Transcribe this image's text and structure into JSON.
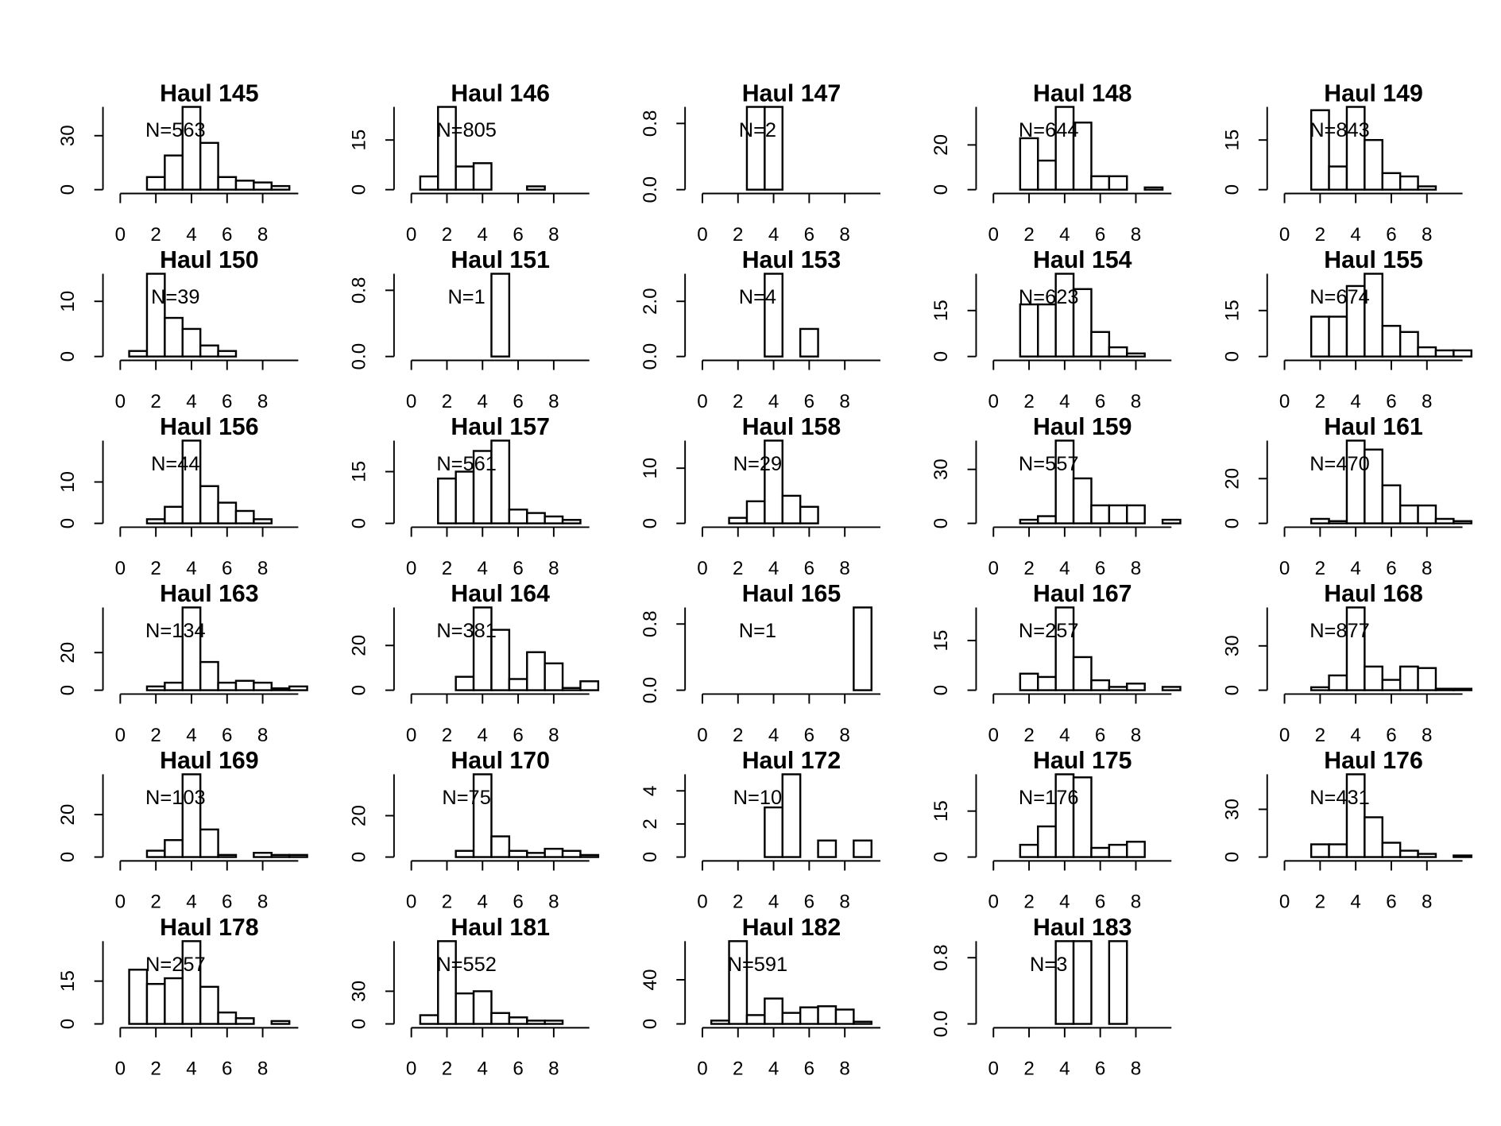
{
  "chart_data": [
    {
      "type": "histogram",
      "title": "Haul 145",
      "annotation": "N=563",
      "bins": [
        0.5,
        1.5,
        2.5,
        3.5,
        4.5,
        5.5,
        6.5,
        7.5,
        8.5,
        9.5,
        10.5
      ],
      "counts": [
        0,
        7,
        19,
        46,
        26,
        7,
        5,
        4,
        2,
        0
      ],
      "xlim": [
        0,
        10
      ],
      "xticks": [
        0,
        2,
        4,
        6,
        8
      ],
      "ylim": [
        0,
        46
      ],
      "yticks": [
        0,
        30
      ]
    },
    {
      "type": "histogram",
      "title": "Haul 146",
      "annotation": "N=805",
      "bins": [
        0.5,
        1.5,
        2.5,
        3.5,
        4.5,
        5.5,
        6.5,
        7.5,
        8.5,
        9.5,
        10.5
      ],
      "counts": [
        4,
        25,
        7,
        8,
        0,
        0,
        1,
        0,
        0,
        0
      ],
      "xlim": [
        0,
        10
      ],
      "xticks": [
        0,
        2,
        4,
        6,
        8
      ],
      "ylim": [
        0,
        25
      ],
      "yticks": [
        0,
        15
      ]
    },
    {
      "type": "histogram",
      "title": "Haul 147",
      "annotation": "N=2",
      "bins": [
        0.5,
        1.5,
        2.5,
        3.5,
        4.5,
        5.5,
        6.5,
        7.5,
        8.5,
        9.5,
        10.5
      ],
      "counts": [
        0,
        0,
        1,
        1,
        0,
        0,
        0,
        0,
        0,
        0
      ],
      "xlim": [
        0,
        10
      ],
      "xticks": [
        0,
        2,
        4,
        6,
        8
      ],
      "ylim": [
        0,
        1
      ],
      "yticks": [
        {
          "value": 0,
          "label": "0.0"
        },
        0.8
      ]
    },
    {
      "type": "histogram",
      "title": "Haul 148",
      "annotation": "N=644",
      "bins": [
        0.5,
        1.5,
        2.5,
        3.5,
        4.5,
        5.5,
        6.5,
        7.5,
        8.5,
        9.5,
        10.5
      ],
      "counts": [
        0,
        23,
        13,
        37,
        30,
        6,
        6,
        0,
        1,
        0
      ],
      "xlim": [
        0,
        10
      ],
      "xticks": [
        0,
        2,
        4,
        6,
        8
      ],
      "ylim": [
        0,
        37
      ],
      "yticks": [
        0,
        20
      ]
    },
    {
      "type": "histogram",
      "title": "Haul 149",
      "annotation": "N=843",
      "bins": [
        0.5,
        1.5,
        2.5,
        3.5,
        4.5,
        5.5,
        6.5,
        7.5,
        8.5,
        9.5,
        10.5
      ],
      "counts": [
        0,
        24,
        7,
        25,
        15,
        5,
        4,
        1,
        0,
        0
      ],
      "xlim": [
        0,
        10
      ],
      "xticks": [
        0,
        2,
        4,
        6,
        8
      ],
      "ylim": [
        0,
        25
      ],
      "yticks": [
        0,
        15
      ]
    },
    {
      "type": "histogram",
      "title": "Haul 150",
      "annotation": "N=39",
      "bins": [
        0.5,
        1.5,
        2.5,
        3.5,
        4.5,
        5.5,
        6.5,
        7.5,
        8.5,
        9.5,
        10.5
      ],
      "counts": [
        1,
        15,
        7,
        5,
        2,
        1,
        0,
        0,
        0,
        0
      ],
      "xlim": [
        0,
        10
      ],
      "xticks": [
        0,
        2,
        4,
        6,
        8
      ],
      "ylim": [
        0,
        15
      ],
      "yticks": [
        0,
        10
      ]
    },
    {
      "type": "histogram",
      "title": "Haul 151",
      "annotation": "N=1",
      "bins": [
        0.5,
        1.5,
        2.5,
        3.5,
        4.5,
        5.5,
        6.5,
        7.5,
        8.5,
        9.5,
        10.5
      ],
      "counts": [
        0,
        0,
        0,
        0,
        1,
        0,
        0,
        0,
        0,
        0
      ],
      "xlim": [
        0,
        10
      ],
      "xticks": [
        0,
        2,
        4,
        6,
        8
      ],
      "ylim": [
        0,
        1
      ],
      "yticks": [
        {
          "value": 0,
          "label": "0.0"
        },
        0.8
      ]
    },
    {
      "type": "histogram",
      "title": "Haul 153",
      "annotation": "N=4",
      "bins": [
        0.5,
        1.5,
        2.5,
        3.5,
        4.5,
        5.5,
        6.5,
        7.5,
        8.5,
        9.5,
        10.5
      ],
      "counts": [
        0,
        0,
        0,
        3,
        0,
        1,
        0,
        0,
        0,
        0
      ],
      "xlim": [
        0,
        10
      ],
      "xticks": [
        0,
        2,
        4,
        6,
        8
      ],
      "ylim": [
        0,
        3
      ],
      "yticks": [
        {
          "value": 0,
          "label": "0.0"
        },
        {
          "value": 2,
          "label": "2.0"
        }
      ]
    },
    {
      "type": "histogram",
      "title": "Haul 154",
      "annotation": "N=623",
      "bins": [
        0.5,
        1.5,
        2.5,
        3.5,
        4.5,
        5.5,
        6.5,
        7.5,
        8.5,
        9.5,
        10.5
      ],
      "counts": [
        0,
        17,
        17,
        27,
        22,
        8,
        3,
        1,
        0,
        0
      ],
      "xlim": [
        0,
        10
      ],
      "xticks": [
        0,
        2,
        4,
        6,
        8
      ],
      "ylim": [
        0,
        27
      ],
      "yticks": [
        0,
        15
      ]
    },
    {
      "type": "histogram",
      "title": "Haul 155",
      "annotation": "N=674",
      "bins": [
        0.5,
        1.5,
        2.5,
        3.5,
        4.5,
        5.5,
        6.5,
        7.5,
        8.5,
        9.5,
        10.5
      ],
      "counts": [
        0,
        13,
        13,
        23,
        27,
        10,
        8,
        3,
        2,
        2
      ],
      "xlim": [
        0,
        10
      ],
      "xticks": [
        0,
        2,
        4,
        6,
        8
      ],
      "ylim": [
        0,
        27
      ],
      "yticks": [
        0,
        15
      ]
    },
    {
      "type": "histogram",
      "title": "Haul 156",
      "annotation": "N=44",
      "bins": [
        0.5,
        1.5,
        2.5,
        3.5,
        4.5,
        5.5,
        6.5,
        7.5,
        8.5,
        9.5,
        10.5
      ],
      "counts": [
        0,
        1,
        4,
        20,
        9,
        5,
        3,
        1,
        0,
        0
      ],
      "xlim": [
        0,
        10
      ],
      "xticks": [
        0,
        2,
        4,
        6,
        8
      ],
      "ylim": [
        0,
        20
      ],
      "yticks": [
        0,
        10
      ]
    },
    {
      "type": "histogram",
      "title": "Haul 157",
      "annotation": "N=561",
      "bins": [
        0.5,
        1.5,
        2.5,
        3.5,
        4.5,
        5.5,
        6.5,
        7.5,
        8.5,
        9.5,
        10.5
      ],
      "counts": [
        0,
        13,
        15,
        21,
        24,
        4,
        3,
        2,
        1,
        0
      ],
      "xlim": [
        0,
        10
      ],
      "xticks": [
        0,
        2,
        4,
        6,
        8
      ],
      "ylim": [
        0,
        24
      ],
      "yticks": [
        0,
        15
      ]
    },
    {
      "type": "histogram",
      "title": "Haul 158",
      "annotation": "N=29",
      "bins": [
        0.5,
        1.5,
        2.5,
        3.5,
        4.5,
        5.5,
        6.5,
        7.5,
        8.5,
        9.5,
        10.5
      ],
      "counts": [
        0,
        1,
        4,
        15,
        5,
        3,
        0,
        0,
        0,
        0
      ],
      "xlim": [
        0,
        10
      ],
      "xticks": [
        0,
        2,
        4,
        6,
        8
      ],
      "ylim": [
        0,
        15
      ],
      "yticks": [
        0,
        10
      ]
    },
    {
      "type": "histogram",
      "title": "Haul 159",
      "annotation": "N=557",
      "bins": [
        0.5,
        1.5,
        2.5,
        3.5,
        4.5,
        5.5,
        6.5,
        7.5,
        8.5,
        9.5,
        10.5
      ],
      "counts": [
        0,
        2,
        4,
        46,
        25,
        10,
        10,
        10,
        0,
        2
      ],
      "xlim": [
        0,
        10
      ],
      "xticks": [
        0,
        2,
        4,
        6,
        8
      ],
      "ylim": [
        0,
        46
      ],
      "yticks": [
        0,
        30
      ]
    },
    {
      "type": "histogram",
      "title": "Haul 161",
      "annotation": "N=470",
      "bins": [
        0.5,
        1.5,
        2.5,
        3.5,
        4.5,
        5.5,
        6.5,
        7.5,
        8.5,
        9.5,
        10.5
      ],
      "counts": [
        0,
        2,
        1,
        37,
        33,
        17,
        8,
        8,
        2,
        1
      ],
      "xlim": [
        0,
        10
      ],
      "xticks": [
        0,
        2,
        4,
        6,
        8
      ],
      "ylim": [
        0,
        37
      ],
      "yticks": [
        0,
        20
      ]
    },
    {
      "type": "histogram",
      "title": "Haul 163",
      "annotation": "N=134",
      "bins": [
        0.5,
        1.5,
        2.5,
        3.5,
        4.5,
        5.5,
        6.5,
        7.5,
        8.5,
        9.5,
        10.5
      ],
      "counts": [
        0,
        2,
        4,
        44,
        15,
        4,
        5,
        4,
        1,
        2
      ],
      "xlim": [
        0,
        10
      ],
      "xticks": [
        0,
        2,
        4,
        6,
        8
      ],
      "ylim": [
        0,
        44
      ],
      "yticks": [
        0,
        20
      ]
    },
    {
      "type": "histogram",
      "title": "Haul 164",
      "annotation": "N=381",
      "bins": [
        0.5,
        1.5,
        2.5,
        3.5,
        4.5,
        5.5,
        6.5,
        7.5,
        8.5,
        9.5,
        10.5
      ],
      "counts": [
        0,
        0,
        6,
        37,
        27,
        5,
        17,
        12,
        1,
        4
      ],
      "xlim": [
        0,
        10
      ],
      "xticks": [
        0,
        2,
        4,
        6,
        8
      ],
      "ylim": [
        0,
        37
      ],
      "yticks": [
        0,
        20
      ]
    },
    {
      "type": "histogram",
      "title": "Haul 165",
      "annotation": "N=1",
      "bins": [
        0.5,
        1.5,
        2.5,
        3.5,
        4.5,
        5.5,
        6.5,
        7.5,
        8.5,
        9.5,
        10.5
      ],
      "counts": [
        0,
        0,
        0,
        0,
        0,
        0,
        0,
        0,
        1,
        0
      ],
      "xlim": [
        0,
        10
      ],
      "xticks": [
        0,
        2,
        4,
        6,
        8
      ],
      "ylim": [
        0,
        1
      ],
      "yticks": [
        {
          "value": 0,
          "label": "0.0"
        },
        0.8
      ]
    },
    {
      "type": "histogram",
      "title": "Haul 167",
      "annotation": "N=257",
      "bins": [
        0.5,
        1.5,
        2.5,
        3.5,
        4.5,
        5.5,
        6.5,
        7.5,
        8.5,
        9.5,
        10.5
      ],
      "counts": [
        0,
        5,
        4,
        25,
        10,
        3,
        1,
        2,
        0,
        1
      ],
      "xlim": [
        0,
        10
      ],
      "xticks": [
        0,
        2,
        4,
        6,
        8
      ],
      "ylim": [
        0,
        25
      ],
      "yticks": [
        0,
        15
      ]
    },
    {
      "type": "histogram",
      "title": "Haul 168",
      "annotation": "N=877",
      "bins": [
        0.5,
        1.5,
        2.5,
        3.5,
        4.5,
        5.5,
        6.5,
        7.5,
        8.5,
        9.5,
        10.5
      ],
      "counts": [
        0,
        2,
        10,
        56,
        16,
        7,
        16,
        15,
        1,
        1
      ],
      "xlim": [
        0,
        10
      ],
      "xticks": [
        0,
        2,
        4,
        6,
        8
      ],
      "ylim": [
        0,
        56
      ],
      "yticks": [
        0,
        30
      ]
    },
    {
      "type": "histogram",
      "title": "Haul 169",
      "annotation": "N=103",
      "bins": [
        0.5,
        1.5,
        2.5,
        3.5,
        4.5,
        5.5,
        6.5,
        7.5,
        8.5,
        9.5,
        10.5
      ],
      "counts": [
        0,
        3,
        8,
        39,
        13,
        1,
        0,
        2,
        1,
        1
      ],
      "xlim": [
        0,
        10
      ],
      "xticks": [
        0,
        2,
        4,
        6,
        8
      ],
      "ylim": [
        0,
        39
      ],
      "yticks": [
        0,
        20
      ]
    },
    {
      "type": "histogram",
      "title": "Haul 170",
      "annotation": "N=75",
      "bins": [
        0.5,
        1.5,
        2.5,
        3.5,
        4.5,
        5.5,
        6.5,
        7.5,
        8.5,
        9.5,
        10.5
      ],
      "counts": [
        0,
        0,
        3,
        40,
        10,
        3,
        2,
        4,
        3,
        1
      ],
      "xlim": [
        0,
        10
      ],
      "xticks": [
        0,
        2,
        4,
        6,
        8
      ],
      "ylim": [
        0,
        40
      ],
      "yticks": [
        0,
        20
      ]
    },
    {
      "type": "histogram",
      "title": "Haul 172",
      "annotation": "N=10",
      "bins": [
        0.5,
        1.5,
        2.5,
        3.5,
        4.5,
        5.5,
        6.5,
        7.5,
        8.5,
        9.5,
        10.5
      ],
      "counts": [
        0,
        0,
        0,
        3,
        5,
        0,
        1,
        0,
        1,
        0
      ],
      "xlim": [
        0,
        10
      ],
      "xticks": [
        0,
        2,
        4,
        6,
        8
      ],
      "ylim": [
        0,
        5
      ],
      "yticks": [
        0,
        2,
        4
      ]
    },
    {
      "type": "histogram",
      "title": "Haul 175",
      "annotation": "N=176",
      "bins": [
        0.5,
        1.5,
        2.5,
        3.5,
        4.5,
        5.5,
        6.5,
        7.5,
        8.5,
        9.5,
        10.5
      ],
      "counts": [
        0,
        4,
        10,
        27,
        26,
        3,
        4,
        5,
        0,
        0
      ],
      "xlim": [
        0,
        10
      ],
      "xticks": [
        0,
        2,
        4,
        6,
        8
      ],
      "ylim": [
        0,
        27
      ],
      "yticks": [
        0,
        15
      ]
    },
    {
      "type": "histogram",
      "title": "Haul 176",
      "annotation": "N=431",
      "bins": [
        0.5,
        1.5,
        2.5,
        3.5,
        4.5,
        5.5,
        6.5,
        7.5,
        8.5,
        9.5,
        10.5
      ],
      "counts": [
        0,
        8,
        8,
        52,
        25,
        9,
        4,
        2,
        0,
        1
      ],
      "xlim": [
        0,
        10
      ],
      "xticks": [
        0,
        2,
        4,
        6,
        8
      ],
      "ylim": [
        0,
        52
      ],
      "yticks": [
        0,
        30
      ]
    },
    {
      "type": "histogram",
      "title": "Haul 178",
      "annotation": "N=257",
      "bins": [
        0.5,
        1.5,
        2.5,
        3.5,
        4.5,
        5.5,
        6.5,
        7.5,
        8.5,
        9.5,
        10.5
      ],
      "counts": [
        19,
        14,
        16,
        29,
        13,
        4,
        2,
        0,
        1,
        0
      ],
      "xlim": [
        0,
        10
      ],
      "xticks": [
        0,
        2,
        4,
        6,
        8
      ],
      "ylim": [
        0,
        29
      ],
      "yticks": [
        0,
        15
      ]
    },
    {
      "type": "histogram",
      "title": "Haul 181",
      "annotation": "N=552",
      "bins": [
        0.5,
        1.5,
        2.5,
        3.5,
        4.5,
        5.5,
        6.5,
        7.5,
        8.5,
        9.5,
        10.5
      ],
      "counts": [
        8,
        76,
        28,
        30,
        10,
        6,
        3,
        3,
        0,
        0
      ],
      "xlim": [
        0,
        10
      ],
      "xticks": [
        0,
        2,
        4,
        6,
        8
      ],
      "ylim": [
        0,
        76
      ],
      "yticks": [
        0,
        30
      ]
    },
    {
      "type": "histogram",
      "title": "Haul 182",
      "annotation": "N=591",
      "bins": [
        0.5,
        1.5,
        2.5,
        3.5,
        4.5,
        5.5,
        6.5,
        7.5,
        8.5,
        9.5,
        10.5
      ],
      "counts": [
        3,
        75,
        8,
        23,
        10,
        15,
        16,
        13,
        2,
        0
      ],
      "xlim": [
        0,
        10
      ],
      "xticks": [
        0,
        2,
        4,
        6,
        8
      ],
      "ylim": [
        0,
        75
      ],
      "yticks": [
        0,
        40
      ]
    },
    {
      "type": "histogram",
      "title": "Haul 183",
      "annotation": "N=3",
      "bins": [
        0.5,
        1.5,
        2.5,
        3.5,
        4.5,
        5.5,
        6.5,
        7.5,
        8.5,
        9.5,
        10.5
      ],
      "counts": [
        0,
        0,
        0,
        1,
        1,
        0,
        1,
        0,
        0,
        0
      ],
      "xlim": [
        0,
        10
      ],
      "xticks": [
        0,
        2,
        4,
        6,
        8
      ],
      "ylim": [
        0,
        1
      ],
      "yticks": [
        {
          "value": 0,
          "label": "0.0"
        },
        0.8
      ]
    }
  ]
}
